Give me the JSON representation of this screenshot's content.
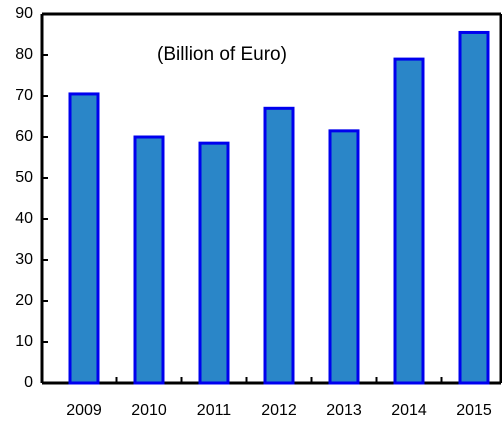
{
  "chart_data": {
    "type": "bar",
    "annotation": "(Billion of Euro)",
    "categories": [
      "2009",
      "2010",
      "2011",
      "2012",
      "2013",
      "2014",
      "2015"
    ],
    "values": [
      70.5,
      60,
      58.5,
      67,
      61.5,
      79,
      85.5
    ],
    "color": "#2a86c8",
    "edge_color": "#0000ee",
    "ylim": [
      0,
      90
    ],
    "yticks": [
      0,
      10,
      20,
      30,
      40,
      50,
      60,
      70,
      80,
      90
    ],
    "grid": false
  }
}
